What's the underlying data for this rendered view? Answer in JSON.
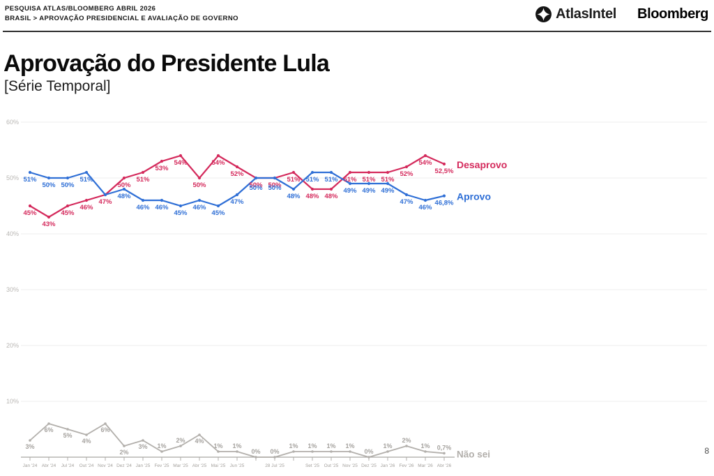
{
  "header": {
    "kicker_line1": "PESQUISA ATLAS/BLOOMBERG ABRIL 2026",
    "kicker_line2": "BRASIL > APROVAÇÃO PRESIDENCIAL E AVALIAÇÃO DE GOVERNO",
    "logo_atlas": "AtlasIntel",
    "logo_bloomberg": "Bloomberg"
  },
  "title": "Aprovação do Presidente Lula",
  "subtitle": "[Série Temporal]",
  "page_number": "8",
  "chart_data": {
    "type": "line",
    "title": "Aprovação do Presidente Lula [Série Temporal]",
    "categories": [
      "Jan '24",
      "Abr '24",
      "Jul '24",
      "Out '24",
      "Nov '24",
      "Dez '24",
      "Jan '25",
      "Fev '25",
      "Mar '25",
      "Abr '25",
      "Mai '25",
      "Jun '25",
      "",
      "28 Jul '25",
      "",
      "Set '25",
      "Out '25",
      "Nov '25",
      "Dez '25",
      "Jan '26",
      "Fev '26",
      "Mar '26",
      "Abr '26"
    ],
    "y_axis": {
      "tick_values": [
        60,
        50,
        40,
        30,
        20,
        10
      ],
      "tick_labels": [
        "60%",
        "50%",
        "40%",
        "30%",
        "20%",
        "10%"
      ],
      "ylim": [
        0,
        62
      ]
    },
    "grid": true,
    "legend_position": "line-end",
    "series": [
      {
        "name": "Desaprovo",
        "color": "#d42a5c",
        "values": [
          45,
          43,
          45,
          46,
          47,
          50,
          51,
          53,
          54,
          50,
          54,
          52,
          50,
          50,
          51,
          48,
          48,
          51,
          51,
          51,
          52,
          54,
          52.5
        ],
        "labels": [
          "45%",
          "43%",
          "45%",
          "46%",
          "47%",
          "50%",
          "51%",
          "53%",
          "54%",
          "50%",
          "54%",
          "52%",
          "50%",
          "50%",
          "51%",
          "48%",
          "48%",
          "51%",
          "51%",
          "51%",
          "52%",
          "54%",
          "52,5%"
        ],
        "label_side": [
          "b",
          "b",
          "b",
          "b",
          "b",
          "b",
          "b",
          "b",
          "b",
          "b",
          "b",
          "b",
          "b",
          "b",
          "b",
          "b",
          "b",
          "b",
          "b",
          "b",
          "b",
          "b",
          "b"
        ]
      },
      {
        "name": "Aprovo",
        "color": "#2f6fd6",
        "values": [
          51,
          50,
          50,
          51,
          47,
          48,
          46,
          46,
          45,
          46,
          45,
          47,
          50,
          50,
          48,
          51,
          51,
          49,
          49,
          49,
          47,
          46,
          46.8
        ],
        "labels": [
          "51%",
          "50%",
          "50%",
          "51%",
          "",
          "48%",
          "46%",
          "46%",
          "45%",
          "46%",
          "45%",
          "47%",
          "50%",
          "50%",
          "48%",
          "51%",
          "51%",
          "49%",
          "49%",
          "49%",
          "47%",
          "46%",
          "46,8%"
        ],
        "label_side": [
          "b",
          "b",
          "b",
          "b",
          "b",
          "b",
          "b",
          "b",
          "b",
          "b",
          "b",
          "b",
          "b",
          "b",
          "b",
          "b",
          "b",
          "b",
          "b",
          "b",
          "b",
          "b",
          "b"
        ],
        "label_dy": {
          "12": 4,
          "13": 4
        }
      },
      {
        "name": "Não sei",
        "color": "#b2afab",
        "values": [
          3,
          6,
          5,
          4,
          6,
          2,
          3,
          1,
          2,
          4,
          1,
          1,
          0,
          0,
          1,
          1,
          1,
          1,
          0,
          1,
          2,
          1,
          0.7
        ],
        "labels": [
          "3%",
          "6%",
          "5%",
          "4%",
          "6%",
          "2%",
          "3%",
          "1%",
          "2%",
          "4%",
          "1%",
          "1%",
          "0%",
          "0%",
          "1%",
          "1%",
          "1%",
          "1%",
          "0%",
          "1%",
          "2%",
          "1%",
          "0,7%"
        ],
        "label_side": [
          "b",
          "b",
          "b",
          "b",
          "b",
          "b",
          "b",
          "a",
          "a",
          "b",
          "a",
          "a",
          "a",
          "a",
          "a",
          "a",
          "a",
          "a",
          "a",
          "a",
          "a",
          "a",
          "a"
        ]
      }
    ]
  }
}
